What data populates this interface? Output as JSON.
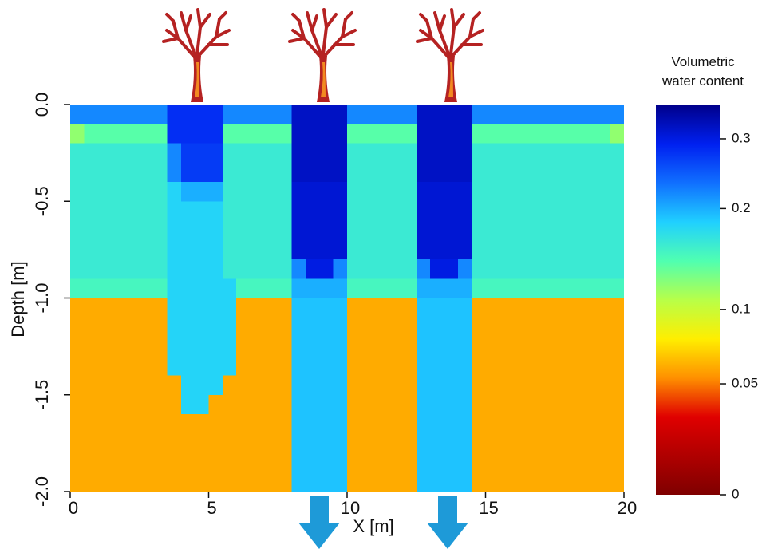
{
  "chart_data": {
    "type": "heatmap",
    "xlabel": "X [m]",
    "ylabel": "Depth [m]",
    "colorbar_title": "Volumetric water content",
    "xlim": [
      0,
      20
    ],
    "xticks": [
      0,
      5,
      10,
      15,
      20
    ],
    "ylim": [
      -2,
      0
    ],
    "yticks": [
      {
        "value": 0,
        "label": "0.0"
      },
      -0.5,
      {
        "value": -1,
        "label": "-1.0"
      },
      -1.5,
      {
        "value": -2,
        "label": "-2.0"
      }
    ],
    "clim": [
      0,
      0.36
    ],
    "cticks": [
      0,
      0.05,
      0.1,
      0.2,
      0.3
    ],
    "colormap": [
      "#7f0000",
      "#b00000",
      "#e00000",
      "#ff9000",
      "#ffee00",
      "#b8ff48",
      "#50ffb0",
      "#20d0ff",
      "#1070ff",
      "#0020f0",
      "#00008c"
    ],
    "x": [
      0.25,
      0.75,
      1.25,
      1.75,
      2.25,
      2.75,
      3.25,
      3.75,
      4.25,
      4.75,
      5.25,
      5.75,
      6.25,
      6.75,
      7.25,
      7.75,
      8.25,
      8.75,
      9.25,
      9.75,
      10.25,
      10.75,
      11.25,
      11.75,
      12.25,
      12.75,
      13.25,
      13.75,
      14.25,
      14.75,
      15.25,
      15.75,
      16.25,
      16.75,
      17.25,
      17.75,
      18.25,
      18.75,
      19.25,
      19.75
    ],
    "y": [
      -0.05,
      -0.15,
      -0.25,
      -0.35,
      -0.45,
      -0.55,
      -0.65,
      -0.75,
      -0.85,
      -0.95,
      -1.05,
      -1.15,
      -1.25,
      -1.35,
      -1.45,
      -1.55,
      -1.65,
      -1.75,
      -1.85,
      -1.95
    ],
    "z": [
      [
        0.22,
        0.22,
        0.22,
        0.22,
        0.22,
        0.22,
        0.22,
        0.28,
        0.28,
        0.28,
        0.28,
        0.22,
        0.22,
        0.22,
        0.22,
        0.22,
        0.32,
        0.32,
        0.32,
        0.32,
        0.22,
        0.22,
        0.22,
        0.22,
        0.22,
        0.32,
        0.32,
        0.32,
        0.32,
        0.22,
        0.22,
        0.22,
        0.22,
        0.22,
        0.22,
        0.22,
        0.22,
        0.22,
        0.22,
        0.22
      ],
      [
        0.12,
        0.14,
        0.14,
        0.14,
        0.14,
        0.14,
        0.14,
        0.28,
        0.28,
        0.28,
        0.28,
        0.14,
        0.14,
        0.14,
        0.14,
        0.14,
        0.32,
        0.32,
        0.32,
        0.32,
        0.14,
        0.14,
        0.14,
        0.14,
        0.14,
        0.32,
        0.32,
        0.32,
        0.32,
        0.14,
        0.14,
        0.14,
        0.14,
        0.14,
        0.14,
        0.14,
        0.14,
        0.14,
        0.14,
        0.12
      ],
      [
        0.16,
        0.16,
        0.16,
        0.16,
        0.16,
        0.16,
        0.16,
        0.22,
        0.27,
        0.27,
        0.27,
        0.16,
        0.16,
        0.16,
        0.16,
        0.16,
        0.32,
        0.32,
        0.32,
        0.32,
        0.16,
        0.16,
        0.16,
        0.16,
        0.16,
        0.32,
        0.32,
        0.32,
        0.32,
        0.16,
        0.16,
        0.16,
        0.16,
        0.16,
        0.16,
        0.16,
        0.16,
        0.16,
        0.16,
        0.16
      ],
      [
        0.16,
        0.16,
        0.16,
        0.16,
        0.16,
        0.16,
        0.16,
        0.22,
        0.27,
        0.27,
        0.27,
        0.16,
        0.16,
        0.16,
        0.16,
        0.16,
        0.32,
        0.32,
        0.32,
        0.32,
        0.16,
        0.16,
        0.16,
        0.16,
        0.16,
        0.32,
        0.32,
        0.32,
        0.32,
        0.16,
        0.16,
        0.16,
        0.16,
        0.16,
        0.16,
        0.16,
        0.16,
        0.16,
        0.16,
        0.16
      ],
      [
        0.16,
        0.16,
        0.16,
        0.16,
        0.16,
        0.16,
        0.16,
        0.18,
        0.2,
        0.2,
        0.2,
        0.16,
        0.16,
        0.16,
        0.16,
        0.16,
        0.31,
        0.31,
        0.31,
        0.31,
        0.16,
        0.16,
        0.16,
        0.16,
        0.16,
        0.31,
        0.31,
        0.31,
        0.31,
        0.16,
        0.16,
        0.16,
        0.16,
        0.16,
        0.16,
        0.16,
        0.16,
        0.16,
        0.16,
        0.16
      ],
      [
        0.16,
        0.16,
        0.16,
        0.16,
        0.16,
        0.16,
        0.16,
        0.18,
        0.18,
        0.18,
        0.18,
        0.16,
        0.16,
        0.16,
        0.16,
        0.16,
        0.31,
        0.31,
        0.31,
        0.31,
        0.16,
        0.16,
        0.16,
        0.16,
        0.16,
        0.31,
        0.31,
        0.31,
        0.31,
        0.16,
        0.16,
        0.16,
        0.16,
        0.16,
        0.16,
        0.16,
        0.16,
        0.16,
        0.16,
        0.16
      ],
      [
        0.16,
        0.16,
        0.16,
        0.16,
        0.16,
        0.16,
        0.16,
        0.18,
        0.18,
        0.18,
        0.18,
        0.16,
        0.16,
        0.16,
        0.16,
        0.16,
        0.31,
        0.31,
        0.31,
        0.31,
        0.16,
        0.16,
        0.16,
        0.16,
        0.16,
        0.31,
        0.31,
        0.31,
        0.31,
        0.16,
        0.16,
        0.16,
        0.16,
        0.16,
        0.16,
        0.16,
        0.16,
        0.16,
        0.16,
        0.16
      ],
      [
        0.16,
        0.16,
        0.16,
        0.16,
        0.16,
        0.16,
        0.16,
        0.18,
        0.18,
        0.18,
        0.18,
        0.16,
        0.16,
        0.16,
        0.16,
        0.16,
        0.31,
        0.31,
        0.31,
        0.31,
        0.16,
        0.16,
        0.16,
        0.16,
        0.16,
        0.31,
        0.31,
        0.31,
        0.31,
        0.16,
        0.16,
        0.16,
        0.16,
        0.16,
        0.16,
        0.16,
        0.16,
        0.16,
        0.16,
        0.16
      ],
      [
        0.16,
        0.16,
        0.16,
        0.16,
        0.16,
        0.16,
        0.16,
        0.18,
        0.18,
        0.18,
        0.18,
        0.16,
        0.16,
        0.16,
        0.16,
        0.16,
        0.22,
        0.3,
        0.3,
        0.22,
        0.16,
        0.16,
        0.16,
        0.16,
        0.16,
        0.22,
        0.3,
        0.3,
        0.22,
        0.16,
        0.16,
        0.16,
        0.16,
        0.16,
        0.16,
        0.16,
        0.16,
        0.16,
        0.16,
        0.16
      ],
      [
        0.15,
        0.15,
        0.15,
        0.15,
        0.15,
        0.15,
        0.15,
        0.18,
        0.18,
        0.18,
        0.18,
        0.18,
        0.15,
        0.15,
        0.15,
        0.15,
        0.2,
        0.2,
        0.2,
        0.2,
        0.15,
        0.15,
        0.15,
        0.15,
        0.15,
        0.2,
        0.2,
        0.2,
        0.2,
        0.15,
        0.15,
        0.15,
        0.15,
        0.15,
        0.15,
        0.15,
        0.15,
        0.15,
        0.15,
        0.15
      ],
      [
        0.06,
        0.06,
        0.06,
        0.06,
        0.06,
        0.06,
        0.06,
        0.18,
        0.18,
        0.18,
        0.18,
        0.18,
        0.06,
        0.06,
        0.06,
        0.06,
        0.19,
        0.19,
        0.19,
        0.19,
        0.06,
        0.06,
        0.06,
        0.06,
        0.06,
        0.19,
        0.19,
        0.19,
        0.19,
        0.06,
        0.06,
        0.06,
        0.06,
        0.06,
        0.06,
        0.06,
        0.06,
        0.06,
        0.06,
        0.06
      ],
      [
        0.06,
        0.06,
        0.06,
        0.06,
        0.06,
        0.06,
        0.06,
        0.18,
        0.18,
        0.18,
        0.18,
        0.18,
        0.06,
        0.06,
        0.06,
        0.06,
        0.19,
        0.19,
        0.19,
        0.19,
        0.06,
        0.06,
        0.06,
        0.06,
        0.06,
        0.19,
        0.19,
        0.19,
        0.19,
        0.06,
        0.06,
        0.06,
        0.06,
        0.06,
        0.06,
        0.06,
        0.06,
        0.06,
        0.06,
        0.06
      ],
      [
        0.06,
        0.06,
        0.06,
        0.06,
        0.06,
        0.06,
        0.06,
        0.18,
        0.18,
        0.18,
        0.18,
        0.18,
        0.06,
        0.06,
        0.06,
        0.06,
        0.19,
        0.19,
        0.19,
        0.19,
        0.06,
        0.06,
        0.06,
        0.06,
        0.06,
        0.19,
        0.19,
        0.19,
        0.19,
        0.06,
        0.06,
        0.06,
        0.06,
        0.06,
        0.06,
        0.06,
        0.06,
        0.06,
        0.06,
        0.06
      ],
      [
        0.06,
        0.06,
        0.06,
        0.06,
        0.06,
        0.06,
        0.06,
        0.18,
        0.18,
        0.18,
        0.18,
        0.18,
        0.06,
        0.06,
        0.06,
        0.06,
        0.19,
        0.19,
        0.19,
        0.19,
        0.06,
        0.06,
        0.06,
        0.06,
        0.06,
        0.19,
        0.19,
        0.19,
        0.19,
        0.06,
        0.06,
        0.06,
        0.06,
        0.06,
        0.06,
        0.06,
        0.06,
        0.06,
        0.06,
        0.06
      ],
      [
        0.06,
        0.06,
        0.06,
        0.06,
        0.06,
        0.06,
        0.06,
        0.06,
        0.18,
        0.18,
        0.18,
        0.06,
        0.06,
        0.06,
        0.06,
        0.06,
        0.19,
        0.19,
        0.19,
        0.19,
        0.06,
        0.06,
        0.06,
        0.06,
        0.06,
        0.19,
        0.19,
        0.19,
        0.19,
        0.06,
        0.06,
        0.06,
        0.06,
        0.06,
        0.06,
        0.06,
        0.06,
        0.06,
        0.06,
        0.06
      ],
      [
        0.06,
        0.06,
        0.06,
        0.06,
        0.06,
        0.06,
        0.06,
        0.06,
        0.18,
        0.18,
        0.06,
        0.06,
        0.06,
        0.06,
        0.06,
        0.06,
        0.19,
        0.19,
        0.19,
        0.19,
        0.06,
        0.06,
        0.06,
        0.06,
        0.06,
        0.19,
        0.19,
        0.19,
        0.19,
        0.06,
        0.06,
        0.06,
        0.06,
        0.06,
        0.06,
        0.06,
        0.06,
        0.06,
        0.06,
        0.06
      ],
      [
        0.06,
        0.06,
        0.06,
        0.06,
        0.06,
        0.06,
        0.06,
        0.06,
        0.06,
        0.06,
        0.06,
        0.06,
        0.06,
        0.06,
        0.06,
        0.06,
        0.19,
        0.19,
        0.19,
        0.19,
        0.06,
        0.06,
        0.06,
        0.06,
        0.06,
        0.19,
        0.19,
        0.19,
        0.19,
        0.06,
        0.06,
        0.06,
        0.06,
        0.06,
        0.06,
        0.06,
        0.06,
        0.06,
        0.06,
        0.06
      ],
      [
        0.06,
        0.06,
        0.06,
        0.06,
        0.06,
        0.06,
        0.06,
        0.06,
        0.06,
        0.06,
        0.06,
        0.06,
        0.06,
        0.06,
        0.06,
        0.06,
        0.19,
        0.19,
        0.19,
        0.19,
        0.06,
        0.06,
        0.06,
        0.06,
        0.06,
        0.19,
        0.19,
        0.19,
        0.19,
        0.06,
        0.06,
        0.06,
        0.06,
        0.06,
        0.06,
        0.06,
        0.06,
        0.06,
        0.06,
        0.06
      ],
      [
        0.06,
        0.06,
        0.06,
        0.06,
        0.06,
        0.06,
        0.06,
        0.06,
        0.06,
        0.06,
        0.06,
        0.06,
        0.06,
        0.06,
        0.06,
        0.06,
        0.19,
        0.19,
        0.19,
        0.19,
        0.06,
        0.06,
        0.06,
        0.06,
        0.06,
        0.19,
        0.19,
        0.19,
        0.19,
        0.06,
        0.06,
        0.06,
        0.06,
        0.06,
        0.06,
        0.06,
        0.06,
        0.06,
        0.06,
        0.06
      ],
      [
        0.06,
        0.06,
        0.06,
        0.06,
        0.06,
        0.06,
        0.06,
        0.06,
        0.06,
        0.06,
        0.06,
        0.06,
        0.06,
        0.06,
        0.06,
        0.06,
        0.19,
        0.19,
        0.19,
        0.19,
        0.06,
        0.06,
        0.06,
        0.06,
        0.06,
        0.19,
        0.19,
        0.19,
        0.19,
        0.06,
        0.06,
        0.06,
        0.06,
        0.06,
        0.06,
        0.06,
        0.06,
        0.06,
        0.06,
        0.06
      ]
    ]
  }
}
